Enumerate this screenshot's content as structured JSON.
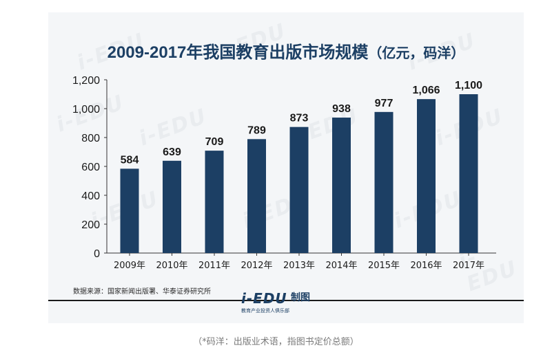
{
  "chart_data": {
    "type": "bar",
    "title": "2009-2017年我国教育出版市场规模",
    "title_unit": "（亿元，码洋）",
    "categories": [
      "2009年",
      "2010年",
      "2011年",
      "2012年",
      "2013年",
      "2014年",
      "2015年",
      "2016年",
      "2017年"
    ],
    "values": [
      584,
      639,
      709,
      789,
      873,
      938,
      977,
      1066,
      1100
    ],
    "value_labels": [
      "584",
      "639",
      "709",
      "789",
      "873",
      "938",
      "977",
      "1,066",
      "1,100"
    ],
    "yticks": [
      "0",
      "200",
      "400",
      "600",
      "800",
      "1,000",
      "1,200"
    ],
    "ytick_values": [
      0,
      200,
      400,
      600,
      800,
      1000,
      1200
    ],
    "ylim": [
      0,
      1200
    ],
    "xlabel": "",
    "ylabel": "",
    "grid": false,
    "legend": "none",
    "bar_color": "#1c3f64"
  },
  "source": "数据来源：国家新闻出版署、华泰证券研究所",
  "watermark_text": "i-EDU",
  "logo": {
    "main": "i-EDU",
    "sub": "教育产业投资人俱乐部",
    "right": "制图"
  },
  "caption": "（*码洋：出版业术语，指图书定价总额）"
}
